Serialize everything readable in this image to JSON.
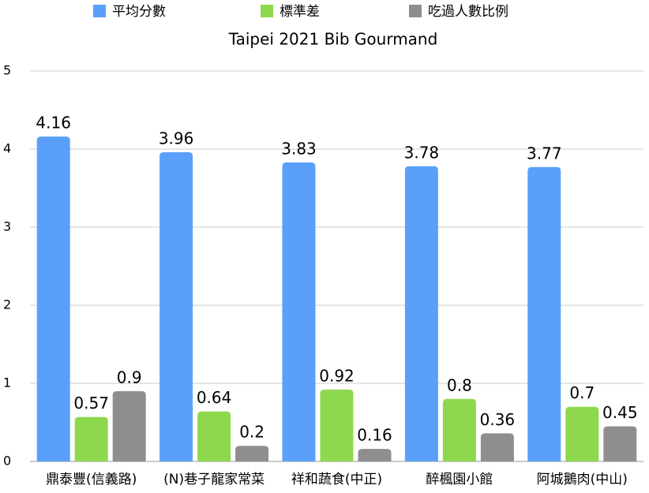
{
  "chart_data": {
    "type": "bar",
    "title": "Taipei 2021 Bib Gourmand",
    "categories": [
      "鼎泰豐(信義路)",
      "(N)巷子龍家常菜",
      "祥和蔬食(中正)",
      "醉楓園小館",
      "阿城鵝肉(中山)"
    ],
    "series": [
      {
        "name": "平均分數",
        "color": "#5aa0fa",
        "values": [
          4.16,
          3.96,
          3.83,
          3.78,
          3.77
        ]
      },
      {
        "name": "標準差",
        "color": "#8ed84e",
        "values": [
          0.57,
          0.64,
          0.92,
          0.8,
          0.7
        ]
      },
      {
        "name": "吃過人數比例",
        "color": "#8e8e8e",
        "values": [
          0.9,
          0.2,
          0.16,
          0.36,
          0.45
        ]
      }
    ],
    "ylim": [
      0,
      5
    ],
    "yticks": [
      0,
      1,
      2,
      3,
      4,
      5
    ],
    "grid": true,
    "legend": "top"
  }
}
